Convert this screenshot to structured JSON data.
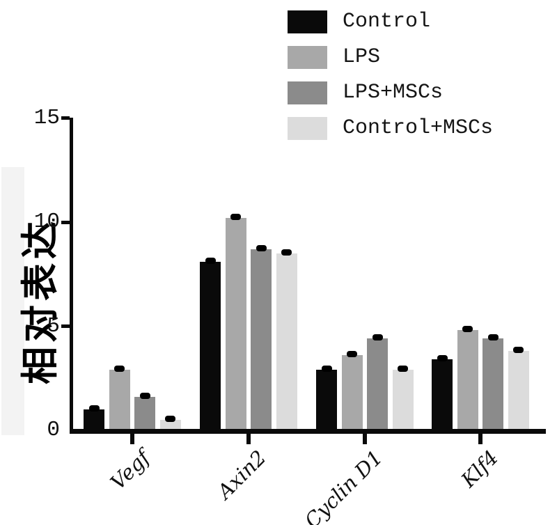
{
  "figure": {
    "background": "#ffffff",
    "artifact_band_color": "#f3f3f3"
  },
  "legend": {
    "position": "top-right",
    "items": [
      {
        "label": "Control",
        "color": "#0a0a0a"
      },
      {
        "label": "LPS",
        "color": "#a8a8a8"
      },
      {
        "label": "LPS+MSCs",
        "color": "#8b8b8b"
      },
      {
        "label": "Control+MSCs",
        "color": "#dcdcdc"
      }
    ]
  },
  "chart_data": {
    "type": "bar",
    "title": "",
    "xlabel": "",
    "ylabel": "相对表达",
    "categories": [
      "Vegf",
      "Axin2",
      "Cyclin D1",
      "Klf4"
    ],
    "series": [
      {
        "name": "Control",
        "color": "#0a0a0a",
        "values": [
          1.0,
          8.1,
          2.9,
          3.4
        ]
      },
      {
        "name": "LPS",
        "color": "#a8a8a8",
        "values": [
          2.9,
          10.2,
          3.6,
          4.8
        ]
      },
      {
        "name": "LPS+MSCs",
        "color": "#8b8b8b",
        "values": [
          1.6,
          8.7,
          4.4,
          4.4
        ]
      },
      {
        "name": "Control+MSCs",
        "color": "#dcdcdc",
        "values": [
          0.5,
          8.5,
          2.9,
          3.8
        ]
      }
    ],
    "error_bars": {
      "visible": true,
      "approx_sd": 0.15
    },
    "y_ticks": [
      0,
      5,
      10,
      15
    ],
    "ylim": [
      0,
      15
    ],
    "grid": false,
    "legend_position": "top-right"
  }
}
